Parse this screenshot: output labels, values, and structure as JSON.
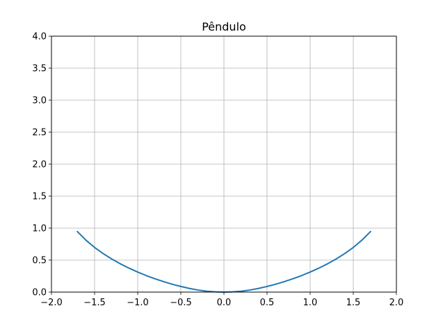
{
  "chart_data": {
    "type": "line",
    "title": "Pêndulo",
    "xlabel": "",
    "ylabel": "",
    "xlim": [
      -2.0,
      2.0
    ],
    "ylim": [
      0.0,
      4.0
    ],
    "grid": true,
    "x_ticks": [
      "−2.0",
      "−1.5",
      "−1.0",
      "−0.5",
      "0.0",
      "0.5",
      "1.0",
      "1.5",
      "2.0"
    ],
    "x_tick_values": [
      -2.0,
      -1.5,
      -1.0,
      -0.5,
      0.0,
      0.5,
      1.0,
      1.5,
      2.0
    ],
    "y_ticks": [
      "0.0",
      "0.5",
      "1.0",
      "1.5",
      "2.0",
      "2.5",
      "3.0",
      "3.5",
      "4.0"
    ],
    "y_tick_values": [
      0.0,
      0.5,
      1.0,
      1.5,
      2.0,
      2.5,
      3.0,
      3.5,
      4.0
    ],
    "series": [
      {
        "color": "#1f77b4",
        "x": [
          -1.7,
          -1.6,
          -1.5,
          -1.4,
          -1.3,
          -1.2,
          -1.1,
          -1.0,
          -0.9,
          -0.8,
          -0.7,
          -0.6,
          -0.5,
          -0.4,
          -0.3,
          -0.2,
          -0.1,
          0.0,
          0.1,
          0.2,
          0.3,
          0.4,
          0.5,
          0.6,
          0.7,
          0.8,
          0.9,
          1.0,
          1.1,
          1.2,
          1.3,
          1.4,
          1.5,
          1.6,
          1.7
        ],
        "y": [
          0.946,
          0.812,
          0.698,
          0.601,
          0.516,
          0.441,
          0.374,
          0.313,
          0.258,
          0.208,
          0.164,
          0.123,
          0.088,
          0.057,
          0.032,
          0.014,
          0.004,
          0.0,
          0.004,
          0.014,
          0.032,
          0.057,
          0.088,
          0.123,
          0.164,
          0.208,
          0.258,
          0.313,
          0.374,
          0.441,
          0.516,
          0.601,
          0.698,
          0.812,
          0.946
        ]
      }
    ]
  }
}
